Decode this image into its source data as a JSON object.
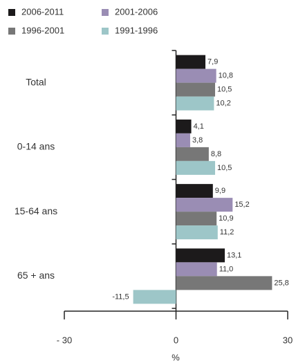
{
  "chart_data": {
    "type": "bar",
    "orientation": "horizontal",
    "categories": [
      "Total",
      "0-14 ans",
      "15-64 ans",
      "65 + ans"
    ],
    "series": [
      {
        "name": "2006-2011",
        "color": "#1c1a1b",
        "values": [
          7.9,
          4.1,
          9.9,
          13.1
        ],
        "value_labels": [
          "7,9",
          "4,1",
          "9,9",
          "13,1"
        ]
      },
      {
        "name": "2001-2006",
        "color": "#9a8db4",
        "values": [
          10.8,
          3.8,
          15.2,
          11.0
        ],
        "value_labels": [
          "10,8",
          "3,8",
          "15,2",
          "11,0"
        ]
      },
      {
        "name": "1996-2001",
        "color": "#777777",
        "values": [
          10.5,
          8.8,
          10.9,
          25.8
        ],
        "value_labels": [
          "10,5",
          "8,8",
          "10,9",
          "25,8"
        ]
      },
      {
        "name": "1991-1996",
        "color": "#9dc6c8",
        "values": [
          10.2,
          10.5,
          11.2,
          -11.5
        ],
        "value_labels": [
          "10,2",
          "10,5",
          "11,2",
          "-11,5"
        ]
      }
    ],
    "xlim": [
      -30,
      30
    ],
    "xticks": [
      {
        "value": -30,
        "label": "- 30"
      },
      0,
      30
    ],
    "xlabel": "%",
    "legend": "top"
  }
}
